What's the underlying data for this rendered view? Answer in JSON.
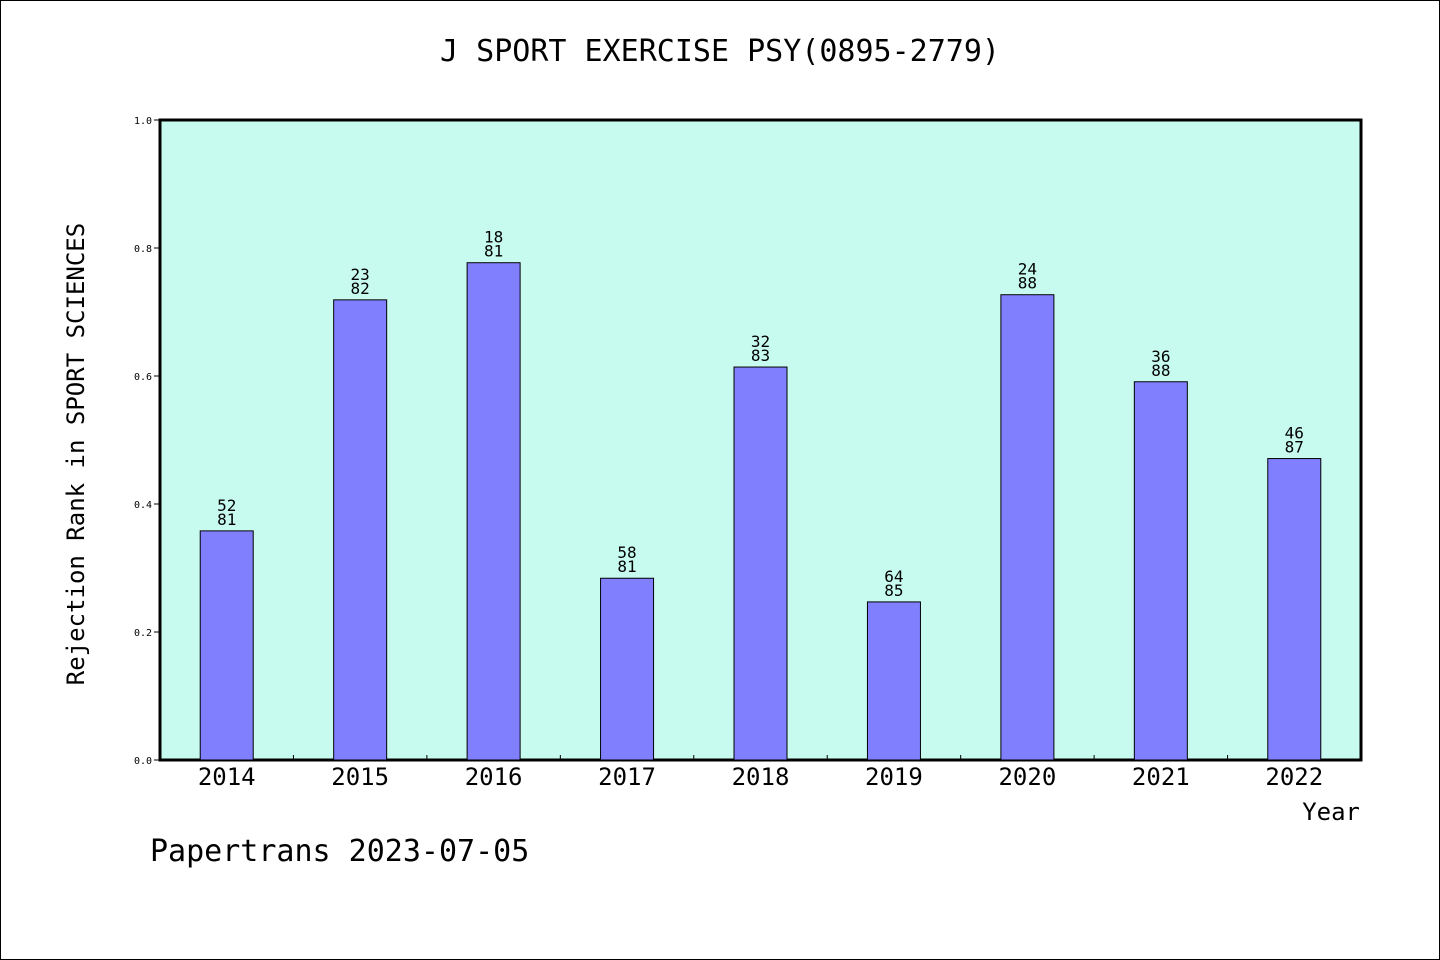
{
  "chart_data": {
    "type": "bar",
    "title": "J SPORT EXERCISE PSY(0895-2779)",
    "xlabel": "Year",
    "ylabel": "Rejection Rank in SPORT SCIENCES",
    "categories": [
      "2014",
      "2015",
      "2016",
      "2017",
      "2018",
      "2019",
      "2020",
      "2021",
      "2022"
    ],
    "values": [
      0.358,
      0.719,
      0.777,
      0.284,
      0.614,
      0.247,
      0.727,
      0.591,
      0.471
    ],
    "bar_labels": [
      [
        "52",
        "81"
      ],
      [
        "23",
        "82"
      ],
      [
        "18",
        "81"
      ],
      [
        "58",
        "81"
      ],
      [
        "32",
        "83"
      ],
      [
        "64",
        "85"
      ],
      [
        "24",
        "88"
      ],
      [
        "36",
        "88"
      ],
      [
        "46",
        "87"
      ]
    ],
    "ylim": [
      0,
      1.0
    ],
    "yticks": [
      "0.0",
      "0.2",
      "0.4",
      "0.6",
      "0.8",
      "1.0"
    ],
    "grid": false,
    "colors": {
      "plot_bg": "#c8fbef",
      "bar": "#8080ff"
    }
  },
  "footer": "Papertrans 2023-07-05"
}
